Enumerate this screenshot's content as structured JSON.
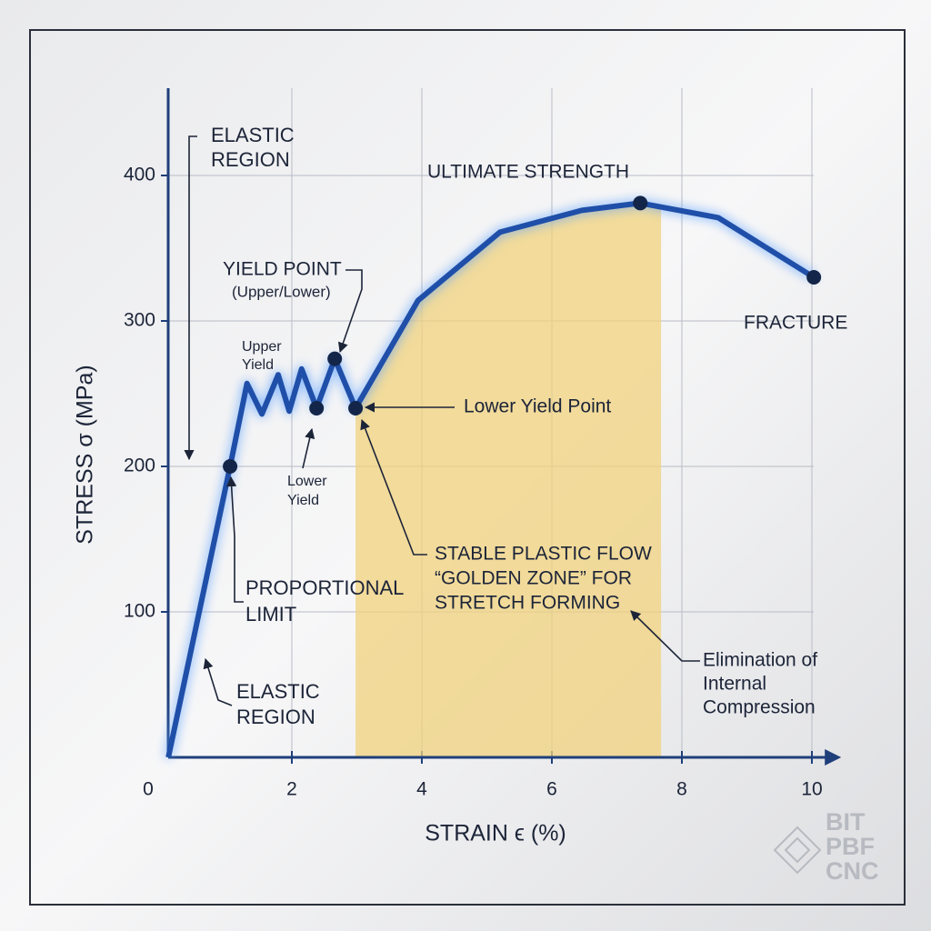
{
  "chart_data": {
    "type": "line",
    "x_label": "STRAIN ϵ (%)",
    "y_label": "STRESS σ (MPa)",
    "xlim": [
      0,
      10.4
    ],
    "ylim": [
      0,
      460
    ],
    "xticks": [
      0,
      2,
      4,
      6,
      8,
      10
    ],
    "yticks": [
      100,
      200,
      300,
      400
    ],
    "grid": true,
    "series": [
      {
        "color": "#1f4fa8",
        "x": [
          0.1,
          1.05,
          1.31,
          1.54,
          1.79,
          1.96,
          2.15,
          2.38,
          2.66,
          2.98,
          3.94,
          5.2,
          6.46,
          7.36,
          8.56,
          10.03
        ],
        "values": [
          0,
          200,
          257,
          236,
          263,
          238,
          267,
          240,
          274,
          240,
          314,
          361,
          376,
          381,
          371,
          330
        ]
      }
    ],
    "markers": {
      "color": "#13264a",
      "x": [
        1.05,
        2.38,
        2.66,
        2.98,
        7.36,
        10.03
      ],
      "values": [
        200,
        240,
        274,
        240,
        381,
        330
      ]
    },
    "shaded_region": {
      "x": [
        2.98,
        7.68
      ],
      "color": "#f0d27c"
    },
    "annotations": [
      {
        "lines": [
          "ELASTIC",
          "REGION"
        ]
      },
      {
        "lines": [
          "ULTIMATE STRENGTH"
        ]
      },
      {
        "lines": [
          "YIELD POINT",
          "(Upper/Lower)"
        ]
      },
      {
        "lines": [
          "Upper",
          "Yield"
        ]
      },
      {
        "lines": [
          "Lower",
          "Yield"
        ]
      },
      {
        "lines": [
          "Lower Yield Point"
        ]
      },
      {
        "lines": [
          "FRACTURE"
        ]
      },
      {
        "lines": [
          "PROPORTIONAL",
          "LIMIT"
        ]
      },
      {
        "lines": [
          "ELASTIC",
          "REGION"
        ]
      },
      {
        "lines": [
          "STABLE PLASTIC FLOW",
          "“GOLDEN ZONE” FOR",
          "STRETCH FORMING"
        ]
      },
      {
        "lines": [
          "Elimination of",
          "Internal",
          "Compression"
        ]
      }
    ],
    "logo": [
      "BIT",
      "PBF",
      "CNC"
    ]
  }
}
